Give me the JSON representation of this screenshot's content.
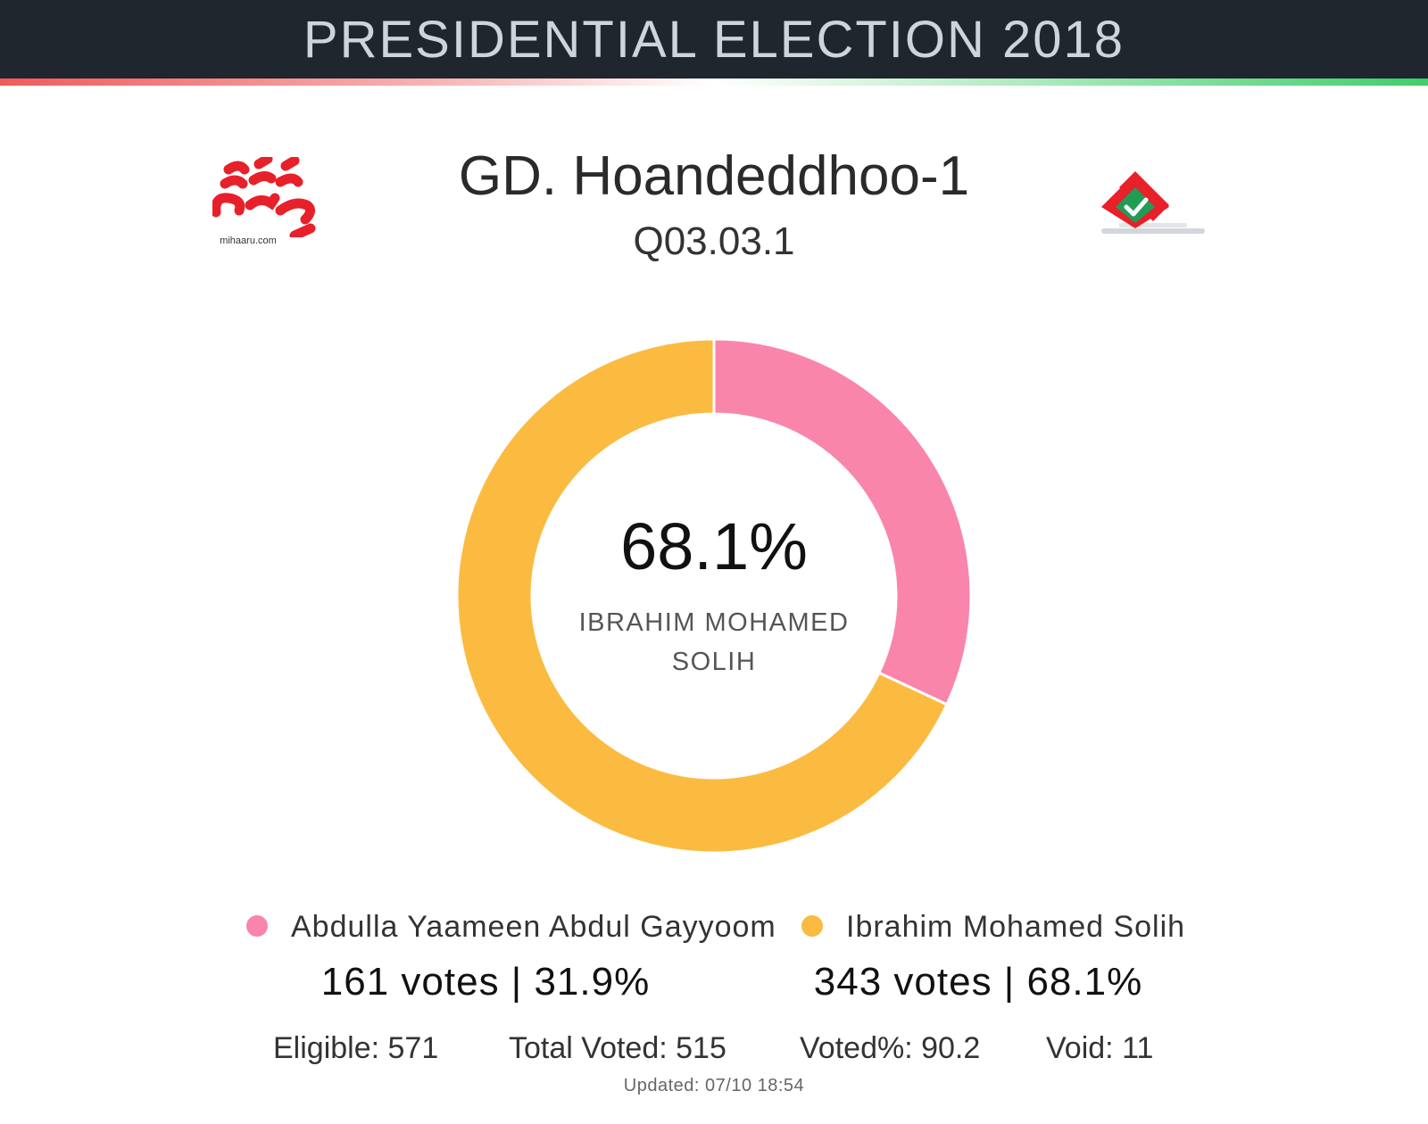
{
  "header": {
    "title": "PRESIDENTIAL ELECTION 2018"
  },
  "logo_left": {
    "text": "mihaaru.com"
  },
  "place": {
    "name": "GD. Hoandeddhoo-1",
    "code": "Q03.03.1"
  },
  "center": {
    "value": "68.1%",
    "label": "IBRAHIM MOHAMED SOLIH"
  },
  "candidates": [
    {
      "name": "Abdulla Yaameen Abdul Gayyoom",
      "result": "161 votes | 31.9%",
      "color": "#f985ab"
    },
    {
      "name": "Ibrahim Mohamed Solih",
      "result": "343 votes | 68.1%",
      "color": "#fbbb41"
    }
  ],
  "stats": {
    "eligible": "Eligible: 571",
    "total_voted": "Total Voted: 515",
    "voted_pct": "Voted%: 90.2",
    "void": "Void: 11"
  },
  "updated": "Updated:  07/10 18:54",
  "chart_data": {
    "type": "pie",
    "title": "",
    "categories": [
      "Abdulla Yaameen Abdul Gayyoom",
      "Ibrahim Mohamed Solih"
    ],
    "values": [
      161,
      343
    ],
    "percent": [
      31.9,
      68.1
    ],
    "colors": [
      "#f985ab",
      "#fbbb41"
    ],
    "donut": true,
    "legend": "bottom"
  }
}
